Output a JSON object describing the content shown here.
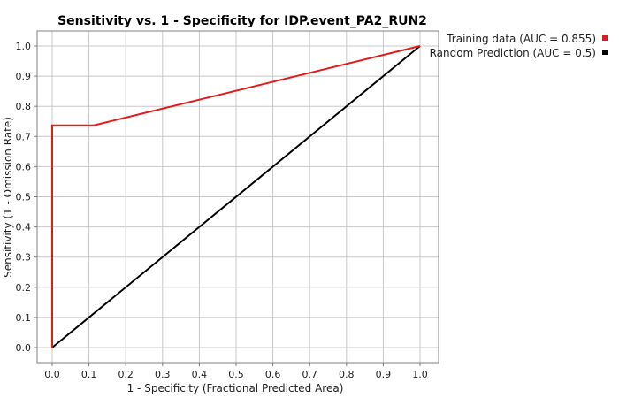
{
  "chart_data": {
    "type": "line",
    "title": "Sensitivity vs. 1 - Specificity for IDP.event_PA2_RUN2",
    "xlabel": "1 - Specificity  (Fractional Predicted Area)",
    "ylabel": "Sensitivity  (1 - Omission Rate)",
    "xlim": [
      0.0,
      1.0
    ],
    "ylim": [
      0.0,
      1.0
    ],
    "x_ticks": [
      "0.0",
      "0.1",
      "0.2",
      "0.3",
      "0.4",
      "0.5",
      "0.6",
      "0.7",
      "0.8",
      "0.9",
      "1.0"
    ],
    "y_ticks": [
      "0.0",
      "0.1",
      "0.2",
      "0.3",
      "0.4",
      "0.5",
      "0.6",
      "0.7",
      "0.8",
      "0.9",
      "1.0"
    ],
    "grid": true,
    "legend_position": "top-right, outside plot",
    "series": [
      {
        "name": "Training data (AUC = 0.855)",
        "color": "#e31a1c",
        "x": [
          0.0,
          0.0,
          0.0,
          0.113,
          1.0
        ],
        "y": [
          0.0,
          0.5,
          0.737,
          0.737,
          1.0
        ]
      },
      {
        "name": "Random Prediction (AUC = 0.5)",
        "color": "#000000",
        "x": [
          0.0,
          1.0
        ],
        "y": [
          0.0,
          1.0
        ]
      }
    ]
  }
}
